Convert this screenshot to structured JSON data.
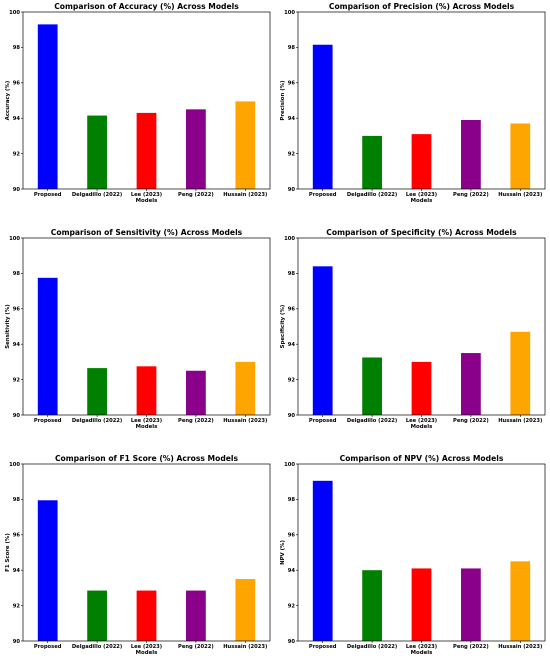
{
  "chart_data": [
    {
      "type": "bar",
      "title": "Comparison of Accuracy (%) Across Models",
      "xlabel": "Models",
      "ylabel": "Accuracy (%)",
      "ylim": [
        90,
        100
      ],
      "yticks": [
        90,
        92,
        94,
        96,
        98,
        100
      ],
      "categories": [
        "Proposed",
        "Delgadillo (2022)",
        "Lee (2023)",
        "Peng (2022)",
        "Hussain (2023)"
      ],
      "values": [
        99.3,
        94.15,
        94.3,
        94.5,
        94.95
      ],
      "colors": [
        "#0000ff",
        "#008000",
        "#ff0000",
        "#8b008b",
        "#ffa500"
      ]
    },
    {
      "type": "bar",
      "title": "Comparison of Precision (%) Across Models",
      "xlabel": "Models",
      "ylabel": "Precision (%)",
      "ylim": [
        90,
        100
      ],
      "yticks": [
        90,
        92,
        94,
        96,
        98,
        100
      ],
      "categories": [
        "Proposed",
        "Delgadillo (2022)",
        "Lee (2023)",
        "Peng (2022)",
        "Hussain (2023)"
      ],
      "values": [
        98.15,
        93.0,
        93.1,
        93.9,
        93.7
      ],
      "colors": [
        "#0000ff",
        "#008000",
        "#ff0000",
        "#8b008b",
        "#ffa500"
      ]
    },
    {
      "type": "bar",
      "title": "Comparison of Sensitivity (%) Across Models",
      "xlabel": "Models",
      "ylabel": "Sensitivity (%)",
      "ylim": [
        90,
        100
      ],
      "yticks": [
        90,
        92,
        94,
        96,
        98,
        100
      ],
      "categories": [
        "Proposed",
        "Delgadillo (2022)",
        "Lee (2023)",
        "Peng (2022)",
        "Hussain (2023)"
      ],
      "values": [
        97.75,
        92.65,
        92.75,
        92.5,
        93.0
      ],
      "colors": [
        "#0000ff",
        "#008000",
        "#ff0000",
        "#8b008b",
        "#ffa500"
      ]
    },
    {
      "type": "bar",
      "title": "Comparison of Specificity (%) Across Models",
      "xlabel": "Models",
      "ylabel": "Specificity (%)",
      "ylim": [
        90,
        100
      ],
      "yticks": [
        90,
        92,
        94,
        96,
        98,
        100
      ],
      "categories": [
        "Proposed",
        "Delgadillo (2022)",
        "Lee (2023)",
        "Peng (2022)",
        "Hussain (2023)"
      ],
      "values": [
        98.4,
        93.25,
        93.0,
        93.5,
        94.7
      ],
      "colors": [
        "#0000ff",
        "#008000",
        "#ff0000",
        "#8b008b",
        "#ffa500"
      ]
    },
    {
      "type": "bar",
      "title": "Comparison of F1 Score (%) Across Models",
      "xlabel": "Models",
      "ylabel": "F1 Score (%)",
      "ylim": [
        90,
        100
      ],
      "yticks": [
        90,
        92,
        94,
        96,
        98,
        100
      ],
      "categories": [
        "Proposed",
        "Delgadillo (2022)",
        "Lee (2023)",
        "Peng (2022)",
        "Hussain (2023)"
      ],
      "values": [
        97.95,
        92.85,
        92.85,
        92.85,
        93.5
      ],
      "colors": [
        "#0000ff",
        "#008000",
        "#ff0000",
        "#8b008b",
        "#ffa500"
      ]
    },
    {
      "type": "bar",
      "title": "Comparison of NPV (%) Across Models",
      "xlabel": "Models",
      "ylabel": "NPV (%)",
      "ylim": [
        90,
        100
      ],
      "yticks": [
        90,
        92,
        94,
        96,
        98,
        100
      ],
      "categories": [
        "Proposed",
        "Delgadillo (2022)",
        "Lee (2023)",
        "Peng (2022)",
        "Hussain (2023)"
      ],
      "values": [
        99.05,
        94.0,
        94.1,
        94.1,
        94.5
      ],
      "colors": [
        "#0000ff",
        "#008000",
        "#ff0000",
        "#8b008b",
        "#ffa500"
      ]
    }
  ]
}
